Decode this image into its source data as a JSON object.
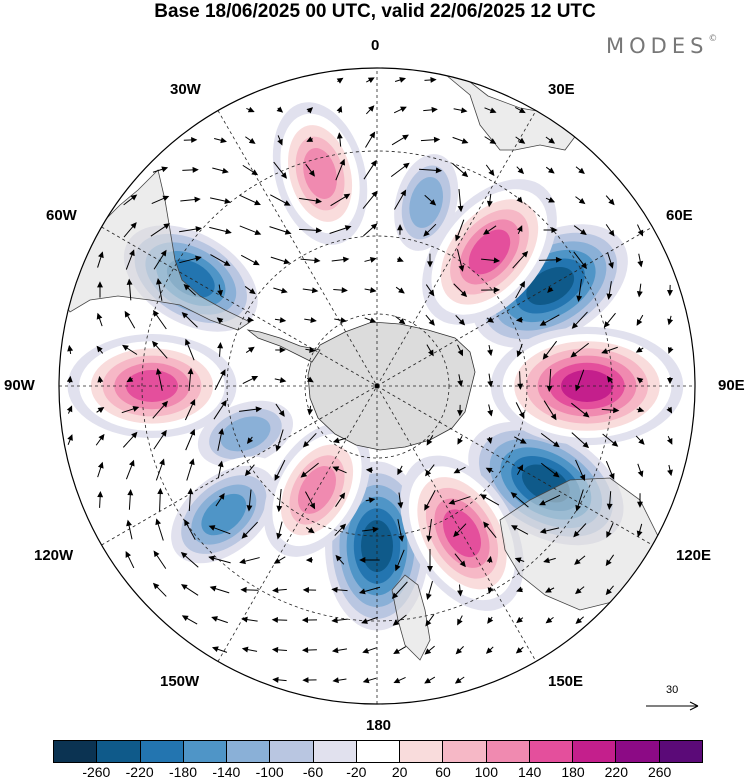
{
  "header": {
    "title": "Base 18/06/2025 00 UTC, valid 22/06/2025 12 UTC",
    "brand": "MODES",
    "brand_mark": "©"
  },
  "map": {
    "projection": "south polar stereographic",
    "meridian_labels": {
      "lon_0": "0",
      "lon_30e": "30E",
      "lon_60e": "60E",
      "lon_90e": "90E",
      "lon_120e": "120E",
      "lon_150e": "150E",
      "lon_180": "180",
      "lon_150w": "150W",
      "lon_120w": "120W",
      "lon_90w": "90W",
      "lon_60w": "60W",
      "lon_30w": "30W"
    },
    "reference_vector": "30",
    "land_color": "#d9d9d9",
    "anomaly_centers": [
      {
        "sign": "positive",
        "near": "90W",
        "peak_class": 180
      },
      {
        "sign": "positive",
        "near": "90E",
        "peak_class": 220
      },
      {
        "sign": "positive",
        "near": "150E",
        "peak_class": 180
      },
      {
        "sign": "positive",
        "near": "40E",
        "peak_class": 180
      },
      {
        "sign": "positive",
        "near": "15W",
        "peak_class": 140
      },
      {
        "sign": "positive",
        "near": "150W",
        "peak_class": 140
      },
      {
        "sign": "negative",
        "near": "60E",
        "peak_class": -220
      },
      {
        "sign": "negative",
        "near": "120E",
        "peak_class": -220
      },
      {
        "sign": "negative",
        "near": "60W",
        "peak_class": -180
      },
      {
        "sign": "negative",
        "near": "180",
        "peak_class": -220
      },
      {
        "sign": "negative",
        "near": "130W",
        "peak_class": -140
      },
      {
        "sign": "negative",
        "near": "15E",
        "peak_class": -100
      },
      {
        "sign": "negative",
        "near": "110W",
        "peak_class": -100
      }
    ]
  },
  "colorbar": {
    "colors": [
      "#0b3352",
      "#0f5a8a",
      "#2375b0",
      "#4f95c7",
      "#8ab0d7",
      "#b9c6e1",
      "#e1e1ee",
      "#ffffff",
      "#f9dcdc",
      "#f6b8c6",
      "#f08ab0",
      "#e44f9c",
      "#c41f8c",
      "#8c0a85",
      "#5b0a78"
    ],
    "tick_labels": [
      "-260",
      "-220",
      "-180",
      "-140",
      "-100",
      "-60",
      "-20",
      "20",
      "60",
      "100",
      "140",
      "180",
      "220",
      "260"
    ]
  }
}
